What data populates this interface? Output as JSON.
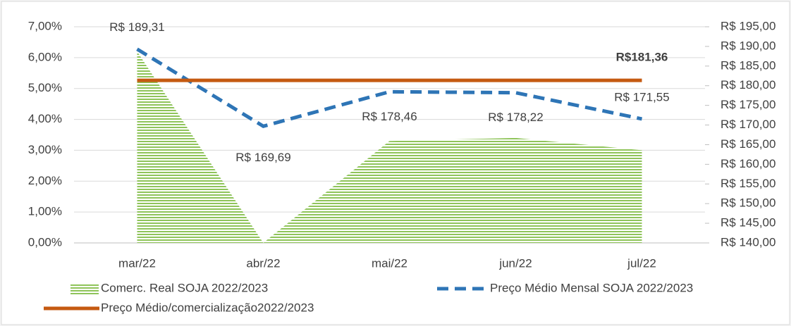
{
  "chart_data": {
    "type": "combo",
    "categories": [
      "mar/22",
      "abr/22",
      "mai/22",
      "jun/22",
      "jul/22"
    ],
    "ylim": [
      0,
      7
    ],
    "yticks": [
      {
        "value": 0,
        "label": "0,00%"
      },
      {
        "value": 1,
        "label": "1,00%"
      },
      {
        "value": 2,
        "label": "2,00%"
      },
      {
        "value": 3,
        "label": "3,00%"
      },
      {
        "value": 4,
        "label": "4,00%"
      },
      {
        "value": 5,
        "label": "5,00%"
      },
      {
        "value": 6,
        "label": "6,00%"
      },
      {
        "value": 7,
        "label": "7,00%"
      }
    ],
    "y2lim": [
      140,
      195
    ],
    "y2ticks": [
      {
        "value": 140,
        "label": "R$ 140,00"
      },
      {
        "value": 145,
        "label": "R$ 145,00"
      },
      {
        "value": 150,
        "label": "R$ 150,00"
      },
      {
        "value": 155,
        "label": "R$ 155,00"
      },
      {
        "value": 160,
        "label": "R$ 160,00"
      },
      {
        "value": 165,
        "label": "R$ 165,00"
      },
      {
        "value": 170,
        "label": "R$ 170,00"
      },
      {
        "value": 175,
        "label": "R$ 175,00"
      },
      {
        "value": 180,
        "label": "R$ 180,00"
      },
      {
        "value": 185,
        "label": "R$ 185,00"
      },
      {
        "value": 190,
        "label": "R$ 190,00"
      },
      {
        "value": 195,
        "label": "R$ 195,00"
      }
    ],
    "series": [
      {
        "name": "Comerc. Real SOJA 2022/2023",
        "type": "area",
        "color": "#8fc45a",
        "values": [
          6.2,
          0,
          3.3,
          3.4,
          3.0
        ]
      },
      {
        "name": "Preço Médio Mensal SOJA 2022/2023",
        "type": "dashed-line",
        "axis": "y2",
        "color": "#2e75b6",
        "values": [
          189.31,
          169.69,
          178.46,
          178.22,
          171.55
        ],
        "value_labels": [
          "R$ 189,31",
          "R$ 169,69",
          "R$ 178,46",
          "R$ 178,22",
          "R$ 171,55"
        ]
      },
      {
        "name": "Preço Médio/comercialização2022/2023",
        "type": "line",
        "axis": "y2",
        "color": "#c55a11",
        "values": [
          181.36,
          181.36,
          181.36,
          181.36,
          181.36
        ],
        "value_labels": [
          null,
          null,
          null,
          null,
          "R$181,36"
        ]
      }
    ]
  }
}
